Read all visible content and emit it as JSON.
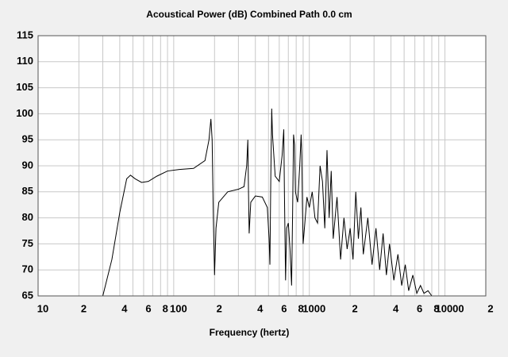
{
  "chart_data": {
    "type": "line",
    "title": "Acoustical Power (dB)   Combined   Path 0.0 cm",
    "x_label": "Frequency (hertz)",
    "xlog": true,
    "xlim": [
      10,
      20000
    ],
    "ylim": [
      65,
      115
    ],
    "xticks": [
      {
        "value": 10,
        "label": "10"
      },
      {
        "value": 20,
        "label": "2"
      },
      {
        "value": 40,
        "label": "4"
      },
      {
        "value": 60,
        "label": "6"
      },
      {
        "value": 80,
        "label": "8"
      },
      {
        "value": 100,
        "label": "100"
      },
      {
        "value": 200,
        "label": "2"
      },
      {
        "value": 400,
        "label": "4"
      },
      {
        "value": 600,
        "label": "6"
      },
      {
        "value": 800,
        "label": "8"
      },
      {
        "value": 1000,
        "label": "1000"
      },
      {
        "value": 2000,
        "label": "2"
      },
      {
        "value": 4000,
        "label": "4"
      },
      {
        "value": 6000,
        "label": "6"
      },
      {
        "value": 8000,
        "label": "8"
      },
      {
        "value": 10000,
        "label": "10000"
      },
      {
        "value": 20000,
        "label": "2"
      }
    ],
    "xminor_ticks": [
      30,
      50,
      70,
      90,
      300,
      500,
      700,
      900,
      3000,
      5000,
      7000,
      9000
    ],
    "yticks": [
      65,
      70,
      75,
      80,
      85,
      90,
      95,
      100,
      105,
      110,
      115
    ],
    "grid": true,
    "series": [
      {
        "color": "#000000",
        "x": [
          30,
          35,
          40,
          45,
          48,
          52,
          58,
          65,
          75,
          90,
          110,
          140,
          170,
          182,
          188,
          192,
          196,
          200,
          205,
          215,
          250,
          300,
          330,
          345,
          352,
          356,
          360,
          370,
          400,
          450,
          490,
          505,
          512,
          520,
          528,
          535,
          560,
          600,
          630,
          648,
          655,
          668,
          680,
          700,
          720,
          740,
          752,
          765,
          778,
          790,
          820,
          850,
          870,
          880,
          890,
          900,
          920,
          960,
          1000,
          1050,
          1100,
          1150,
          1200,
          1250,
          1300,
          1350,
          1400,
          1450,
          1500,
          1600,
          1700,
          1800,
          1900,
          2000,
          2100,
          2200,
          2300,
          2400,
          2500,
          2700,
          2900,
          3100,
          3300,
          3500,
          3700,
          3900,
          4200,
          4500,
          4800,
          5100,
          5400,
          5800,
          6200,
          6600,
          7000,
          7500,
          8000
        ],
        "values": [
          65,
          72,
          81,
          87.5,
          88.2,
          87.5,
          86.8,
          87,
          88,
          89,
          89.3,
          89.5,
          91,
          95,
          99,
          95,
          80,
          69,
          78,
          83,
          85,
          85.5,
          86,
          90,
          95,
          85,
          77,
          83,
          84.2,
          84,
          82,
          76,
          71,
          88,
          101,
          96,
          88,
          87,
          92,
          97,
          85,
          68,
          78,
          79,
          74,
          67,
          80,
          96,
          94,
          85,
          83,
          90,
          96,
          92,
          82,
          75,
          78,
          84,
          82,
          85,
          80,
          79,
          90,
          87,
          78,
          93,
          80,
          89,
          76,
          84,
          72,
          80,
          74,
          78,
          72,
          85,
          76,
          82,
          73,
          80,
          71,
          78,
          70,
          77,
          69,
          75,
          68,
          73,
          67,
          71,
          66,
          69,
          65.5,
          67,
          65.5,
          66,
          65
        ]
      }
    ]
  }
}
